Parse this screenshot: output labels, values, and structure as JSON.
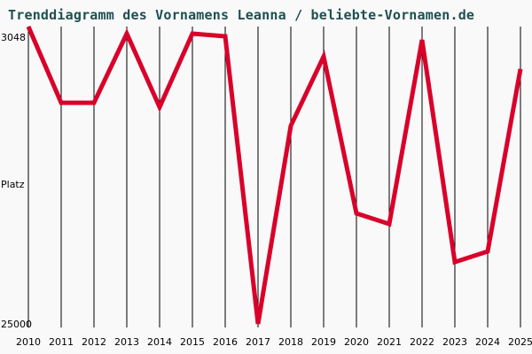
{
  "chart_data": {
    "type": "line",
    "title": "Trenddiagramm des Vornamens Leanna / beliebte-Vornamen.de",
    "xlabel": "",
    "ylabel": "Platz",
    "y_axis_inverted": true,
    "ylim": [
      3048,
      25000
    ],
    "ytick_labels": [
      "3048",
      "25000"
    ],
    "grid": "vertical lines per year",
    "legend": null,
    "categories": [
      "2010",
      "2011",
      "2012",
      "2013",
      "2014",
      "2015",
      "2016",
      "2017",
      "2018",
      "2019",
      "2020",
      "2021",
      "2022",
      "2023",
      "2024",
      "2025"
    ],
    "series": [
      {
        "name": "Leanna",
        "color": "#d9002a",
        "values": [
          3048,
          8640,
          8640,
          3570,
          8960,
          3570,
          3760,
          24870,
          10330,
          5250,
          16760,
          17540,
          4030,
          20330,
          19550,
          6160
        ]
      }
    ]
  },
  "header": {
    "title": "Trenddiagramm des Vornamens Leanna / beliebte-Vornamen.de"
  },
  "axis": {
    "y_top": "3048",
    "y_bottom": "25000",
    "y_label": "Platz",
    "x_labels": [
      "2010",
      "2011",
      "2012",
      "2013",
      "2014",
      "2015",
      "2016",
      "2017",
      "2018",
      "2019",
      "2020",
      "2021",
      "2022",
      "2023",
      "2024",
      "2025"
    ]
  },
  "colors": {
    "line": "#d9002a",
    "title": "#1f4f4f",
    "background": "#f9f9f9",
    "grid": "#000000"
  }
}
